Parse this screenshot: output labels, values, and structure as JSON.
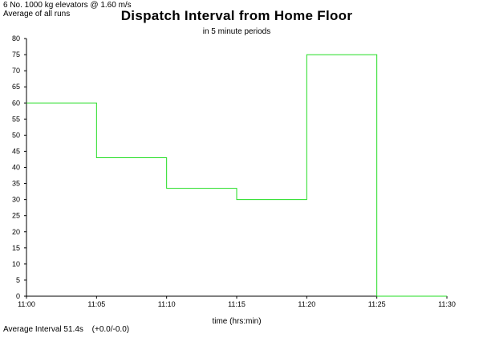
{
  "header": {
    "line1": "6 No. 1000 kg elevators @ 1.60 m/s",
    "line2": "Average of all runs"
  },
  "footer": {
    "avg_label": "Average Interval 51.4s",
    "delta": "(+0.0/-0.0)"
  },
  "colors": {
    "series": "#22dd22",
    "axis": "#000000"
  },
  "chart_data": {
    "type": "line",
    "title": "Dispatch Interval from Home Floor",
    "subtitle": "in 5 minute periods",
    "xlabel": "time (hrs:min)",
    "ylabel": "",
    "ylim": [
      0,
      80
    ],
    "y_ticks": [
      0,
      5,
      10,
      15,
      20,
      25,
      30,
      35,
      40,
      45,
      50,
      55,
      60,
      65,
      70,
      75,
      80
    ],
    "x_ticks": [
      "11:00",
      "11:05",
      "11:10",
      "11:15",
      "11:20",
      "11:25",
      "11:30"
    ],
    "grid": false,
    "step": true,
    "series": [
      {
        "periods": [
          "11:00",
          "11:05",
          "11:10",
          "11:15",
          "11:20",
          "11:25"
        ],
        "values": [
          60,
          43,
          33.5,
          30,
          75,
          0
        ]
      }
    ]
  }
}
